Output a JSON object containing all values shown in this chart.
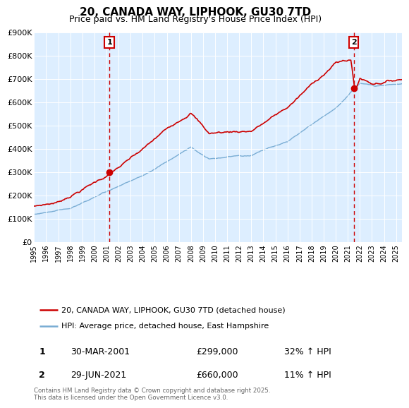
{
  "title": "20, CANADA WAY, LIPHOOK, GU30 7TD",
  "subtitle": "Price paid vs. HM Land Registry's House Price Index (HPI)",
  "legend_line1": "20, CANADA WAY, LIPHOOK, GU30 7TD (detached house)",
  "legend_line2": "HPI: Average price, detached house, East Hampshire",
  "annotation1_label": "1",
  "annotation1_date": "30-MAR-2001",
  "annotation1_price": "£299,000",
  "annotation1_pct": "32% ↑ HPI",
  "annotation2_label": "2",
  "annotation2_date": "29-JUN-2021",
  "annotation2_price": "£660,000",
  "annotation2_pct": "11% ↑ HPI",
  "footer": "Contains HM Land Registry data © Crown copyright and database right 2025.\nThis data is licensed under the Open Government Licence v3.0.",
  "red_color": "#cc0000",
  "blue_color": "#7aadd4",
  "bg_color": "#ddeeff",
  "vline_color": "#cc0000",
  "ylim": [
    0,
    900000
  ],
  "xlim_start": 1995.0,
  "xlim_end": 2025.5,
  "marker1_x": 2001.24,
  "marker1_y": 299000,
  "marker2_x": 2021.49,
  "marker2_y": 660000,
  "vline1_x": 2001.24,
  "vline2_x": 2021.49
}
